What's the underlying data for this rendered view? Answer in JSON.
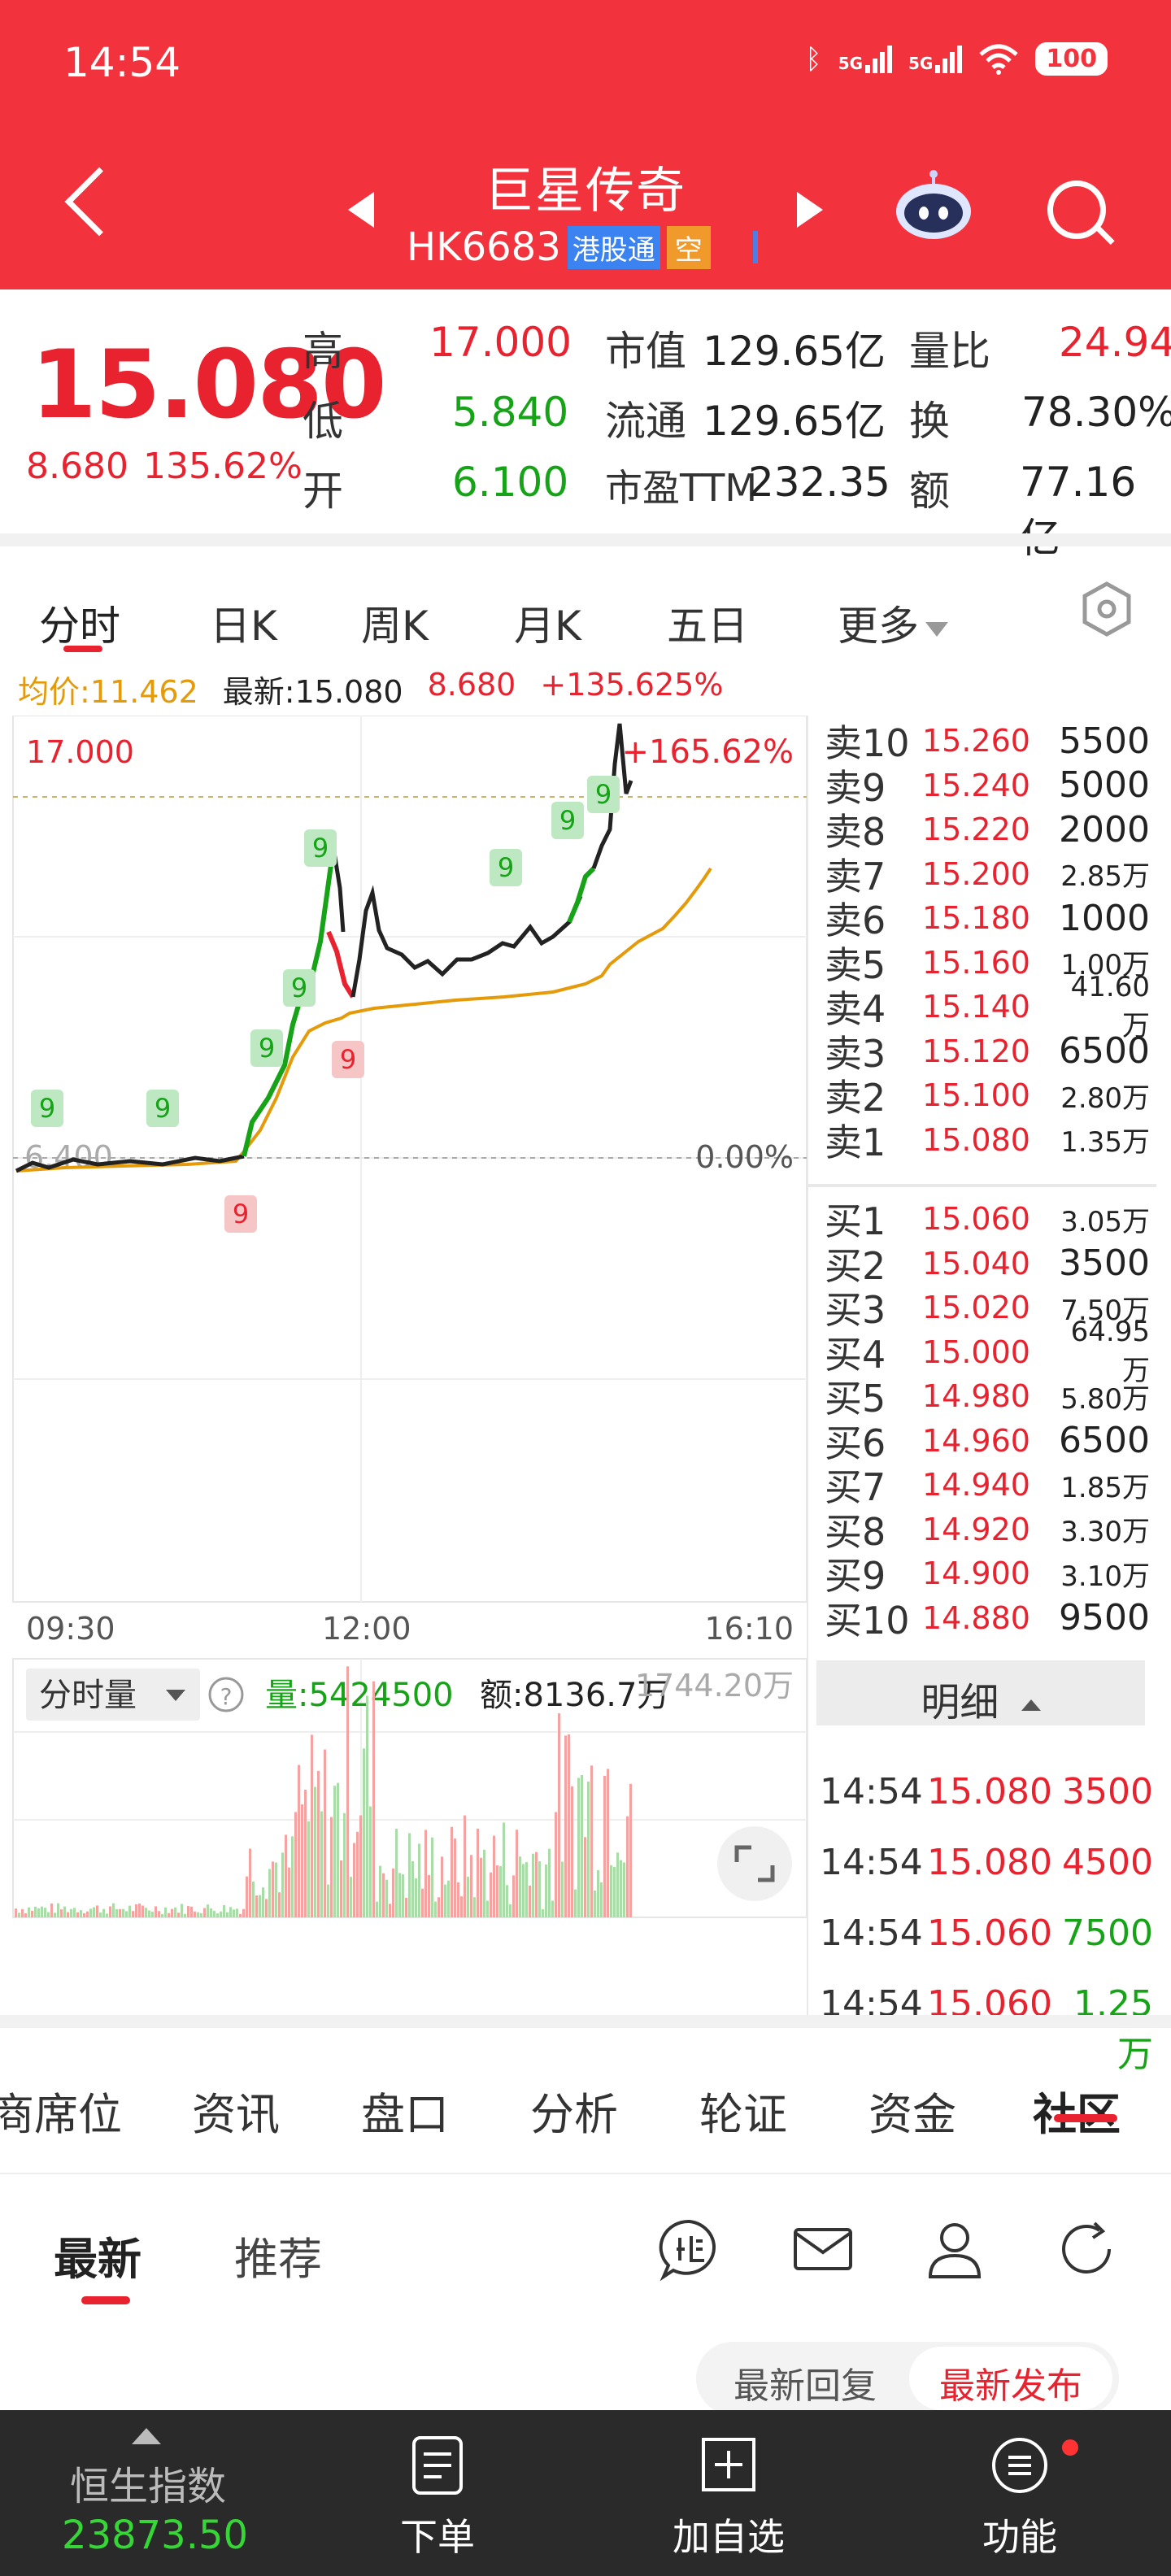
{
  "status": {
    "time": "14:54",
    "network1": "5G",
    "network2": "5G",
    "battery": "100"
  },
  "header": {
    "stock_name": "巨星传奇",
    "stock_code": "HK6683",
    "tag_connect": "港股通",
    "tag_short": "空"
  },
  "quote": {
    "price": "15.080",
    "change": "8.680",
    "change_pct": "135.62%",
    "high_label": "高",
    "high": "17.000",
    "low_label": "低",
    "low": "5.840",
    "open_label": "开",
    "open": "6.100",
    "mcap_label": "市值",
    "mcap": "129.65亿",
    "float_label": "流通",
    "float": "129.65亿",
    "pe_label": "市盈TTM",
    "pe": "232.35",
    "vol_ratio_label": "量比",
    "vol_ratio": "24.94",
    "turnover_label": "换",
    "turnover": "78.30%",
    "amount_label": "额",
    "amount": "77.16亿"
  },
  "chart_tabs": [
    "分时",
    "日K",
    "周K",
    "月K",
    "五日",
    "更多"
  ],
  "avg_bar": {
    "avg": "均价:11.462",
    "latest": "最新:15.080",
    "change": "8.680",
    "change_pct": "+135.625%"
  },
  "chart": {
    "y_high": "17.000",
    "y_high_pct": "+165.62%",
    "y_base": "6.400",
    "y_base_pct": "0.00%",
    "x_start": "09:30",
    "x_mid": "12:00",
    "x_end": "16:10",
    "vol_dropdown": "分时量",
    "help": "?",
    "vol_value": "量:5424500",
    "amt_value": "额:8136.7万",
    "vol_max": "1744.20万",
    "marker_text": "9"
  },
  "chart_data": {
    "type": "line",
    "x_range": [
      "09:30",
      "16:10"
    ],
    "ylim": [
      6.4,
      17.0
    ],
    "series": [
      {
        "name": "均价",
        "color": "#e59a0a"
      }
    ]
  },
  "orderbook": {
    "asks": [
      {
        "label": "卖10",
        "price": "15.260",
        "vol": "5500"
      },
      {
        "label": "卖9",
        "price": "15.240",
        "vol": "5000"
      },
      {
        "label": "卖8",
        "price": "15.220",
        "vol": "2000"
      },
      {
        "label": "卖7",
        "price": "15.200",
        "vol": "2.85万"
      },
      {
        "label": "卖6",
        "price": "15.180",
        "vol": "1000"
      },
      {
        "label": "卖5",
        "price": "15.160",
        "vol": "1.00万"
      },
      {
        "label": "卖4",
        "price": "15.140",
        "vol": "41.60万"
      },
      {
        "label": "卖3",
        "price": "15.120",
        "vol": "6500"
      },
      {
        "label": "卖2",
        "price": "15.100",
        "vol": "2.80万"
      },
      {
        "label": "卖1",
        "price": "15.080",
        "vol": "1.35万"
      }
    ],
    "bids": [
      {
        "label": "买1",
        "price": "15.060",
        "vol": "3.05万"
      },
      {
        "label": "买2",
        "price": "15.040",
        "vol": "3500"
      },
      {
        "label": "买3",
        "price": "15.020",
        "vol": "7.50万"
      },
      {
        "label": "买4",
        "price": "15.000",
        "vol": "64.95万"
      },
      {
        "label": "买5",
        "price": "14.980",
        "vol": "5.80万"
      },
      {
        "label": "买6",
        "price": "14.960",
        "vol": "6500"
      },
      {
        "label": "买7",
        "price": "14.940",
        "vol": "1.85万"
      },
      {
        "label": "买8",
        "price": "14.920",
        "vol": "3.30万"
      },
      {
        "label": "买9",
        "price": "14.900",
        "vol": "3.10万"
      },
      {
        "label": "买10",
        "price": "14.880",
        "vol": "9500"
      }
    ],
    "detail_tab": "明细",
    "details": [
      {
        "time": "14:54",
        "price": "15.080",
        "vol": "3500",
        "color": "#e8232f"
      },
      {
        "time": "14:54",
        "price": "15.080",
        "vol": "4500",
        "color": "#e8232f"
      },
      {
        "time": "14:54",
        "price": "15.060",
        "vol": "7500",
        "color": "#17a317"
      },
      {
        "time": "14:54",
        "price": "15.060",
        "vol": "1.25万",
        "color": "#17a317"
      }
    ]
  },
  "news_tabs": [
    "商席位",
    "资讯",
    "盘口",
    "分析",
    "轮证",
    "资金",
    "社区"
  ],
  "feed": {
    "latest": "最新",
    "recommend": "推荐",
    "sort_reply": "最新回复",
    "sort_publish": "最新发布"
  },
  "bottom_nav": {
    "index_name": "恒生指数",
    "index_value": "23873.50",
    "order": "下单",
    "watch": "加自选",
    "func": "功能"
  }
}
